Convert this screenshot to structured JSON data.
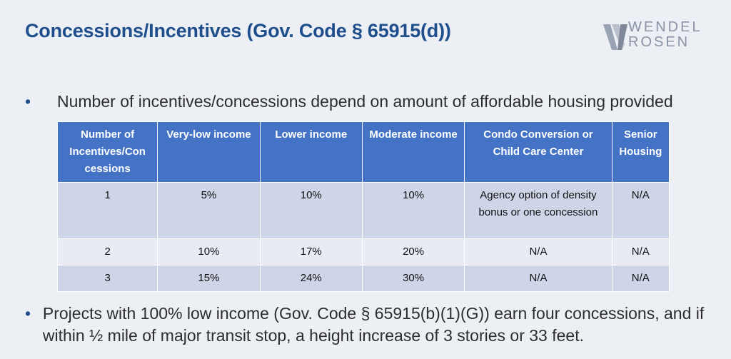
{
  "title": "Concessions/Incentives (Gov. Code § 65915(d))",
  "logo": {
    "line1": "WENDEL",
    "line2": "ROSEN"
  },
  "bullets": [
    "Number of incentives/concessions depend on amount of affordable housing provided",
    "Projects with 100% low income (Gov. Code § 65915(b)(1)(G)) earn four concessions, and if within ½ mile of major transit stop, a height increase of 3 stories or 33 feet."
  ],
  "table": {
    "headers": [
      "Number of Incentives/Con cessions",
      "Very-low income",
      "Lower income",
      "Moderate income",
      "Condo Conversion or Child Care Center",
      "Senior Housing"
    ],
    "rows": [
      [
        "1",
        "5%",
        "10%",
        "10%",
        "Agency option of density bonus or one concession",
        "N/A"
      ],
      [
        "2",
        "10%",
        "17%",
        "20%",
        "N/A",
        "N/A"
      ],
      [
        "3",
        "15%",
        "24%",
        "30%",
        "N/A",
        "N/A"
      ]
    ]
  },
  "colors": {
    "title": "#1f4e8c",
    "header_bg": "#4472c4",
    "row_odd": "#cfd5e8",
    "row_even": "#e8ebf4",
    "background": "#eceff4"
  }
}
